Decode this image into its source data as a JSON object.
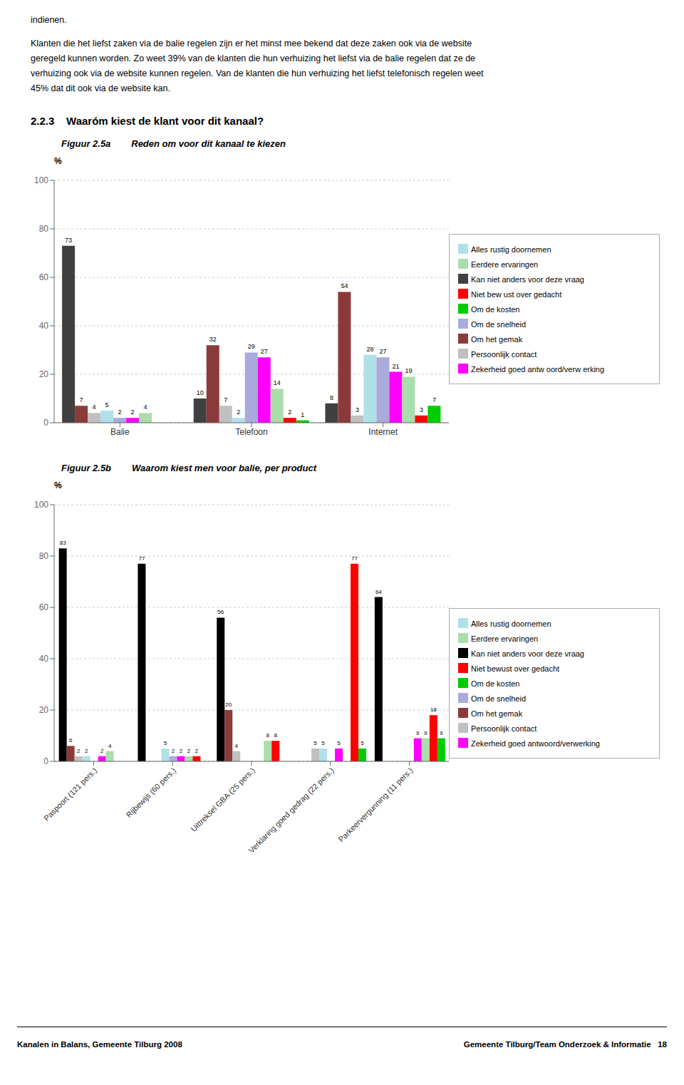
{
  "page_text": [
    "indienen.",
    "Klanten die het liefst zaken via de balie regelen zijn er het minst mee bekend dat deze zaken ook via de website",
    "geregeld kunnen worden. Zo weet 39% van de klanten die hun verhuizing het liefst via de balie regelen dat ze de",
    "verhuizing ook via de website kunnen regelen. Van de klanten die hun verhuizing het liefst telefonisch regelen weet",
    "45% dat dit ook via de website kan."
  ],
  "section_number": "2.2.3",
  "section_title": "Waaróm kiest de klant voor dit kanaal?",
  "footer_left": "Kanalen in Balans, Gemeente Tilburg 2008",
  "footer_right": "Gemeente Tilburg/Team Onderzoek & Informatie   18",
  "chart_data": [
    {
      "type": "bar",
      "title": "Figuur 2.5a",
      "subtitle": "Reden om voor dit kanaal te kiezen",
      "y_label": "%",
      "categories": [
        "Balie",
        "Telefoon",
        "Internet"
      ],
      "series": [
        {
          "name": "Kan niet anders voor deze vraag",
          "color": "#404040",
          "values": [
            73,
            10,
            8
          ]
        },
        {
          "name": "Om het gemak",
          "color": "#8B3A3A",
          "values": [
            7,
            32,
            54
          ]
        },
        {
          "name": "Persoonlijk contact",
          "color": "#C0C0C0",
          "values": [
            4,
            7,
            3
          ]
        },
        {
          "name": "Alles rustig doornemen",
          "color": "#B0E0E8",
          "values": [
            5,
            2,
            28
          ]
        },
        {
          "name": "Om de snelheid",
          "color": "#AAAADD",
          "values": [
            2,
            29,
            27
          ]
        },
        {
          "name": "Zekerheid goed antw oord/verw erking",
          "color": "#FF00FF",
          "values": [
            2,
            27,
            21
          ]
        },
        {
          "name": "Eerdere ervaringen",
          "color": "#AADDAA",
          "values": [
            4,
            14,
            19
          ]
        },
        {
          "name": "Niet bew ust over gedacht",
          "color": "#FF0000",
          "values": [
            0,
            2,
            3
          ]
        },
        {
          "name": "Om de kosten",
          "color": "#00CC00",
          "values": [
            0,
            1,
            7
          ]
        }
      ],
      "ylim": [
        0,
        100
      ],
      "yticks": [
        0,
        20,
        40,
        60,
        80,
        100
      ],
      "grid": true,
      "legend": "right",
      "data_labels": true
    },
    {
      "type": "bar",
      "title": "Figuur 2.5b",
      "subtitle": "Waarom kiest men voor balie, per product",
      "y_label": "%",
      "categories": [
        "Paspoort (121 pers.)",
        "Rijbewijs (60 pers.)",
        "Uittreksel GBA (25 pers.)",
        "Verklaring goed gedrag (22 pers.)",
        "Parkeervergunning (11 pers.)"
      ],
      "series": [
        {
          "name": "Kan niet anders voor deze vraag",
          "color": "#000000",
          "values": [
            83,
            77,
            56,
            0,
            64
          ]
        },
        {
          "name": "Om het gemak",
          "color": "#8B3A3A",
          "values": [
            6,
            0,
            20,
            0,
            0
          ]
        },
        {
          "name": "Persoonlijk contact",
          "color": "#C0C0C0",
          "values": [
            2,
            0,
            4,
            5,
            0
          ]
        },
        {
          "name": "Alles rustig doornemen",
          "color": "#B0E0E8",
          "values": [
            2,
            5,
            0,
            5,
            0
          ]
        },
        {
          "name": "Om de snelheid",
          "color": "#AAAADD",
          "values": [
            0,
            2,
            0,
            0,
            0
          ]
        },
        {
          "name": "Zekerheid goed antwoord/verwerking",
          "color": "#FF00FF",
          "values": [
            2,
            2,
            0,
            5,
            9
          ]
        },
        {
          "name": "Eerdere ervaringen",
          "color": "#AADDAA",
          "values": [
            4,
            2,
            8,
            0,
            9
          ]
        },
        {
          "name": "Niet bewust over gedacht",
          "color": "#FF0000",
          "values": [
            0,
            2,
            8,
            77,
            18
          ]
        },
        {
          "name": "Om de kosten",
          "color": "#00CC00",
          "values": [
            0,
            0,
            0,
            5,
            9
          ]
        }
      ],
      "ylim": [
        0,
        100
      ],
      "yticks": [
        0,
        20,
        40,
        60,
        80,
        100
      ],
      "grid": true,
      "legend": "right",
      "data_labels": true
    }
  ]
}
